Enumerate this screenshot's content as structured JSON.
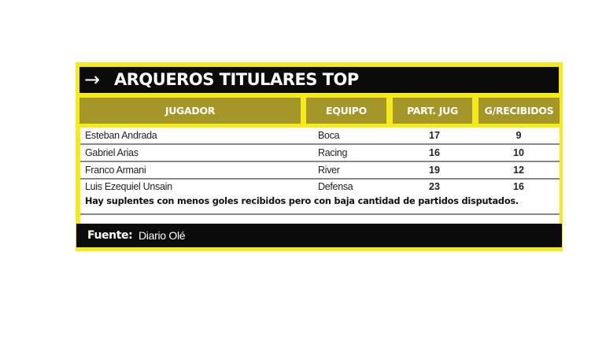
{
  "title": {
    "icon": "arrow-right-icon",
    "arrow": "→",
    "text": "ARQUEROS TITULARES TOP"
  },
  "headers": [
    "JUGADOR",
    "EQUIPO",
    "PART. JUG",
    "G/RECIBIDOS"
  ],
  "rows": [
    {
      "jugador": "Esteban Andrada",
      "equipo": "Boca",
      "partidos": "17",
      "goles": "9"
    },
    {
      "jugador": "Gabriel Arias",
      "equipo": "Racing",
      "partidos": "16",
      "goles": "10"
    },
    {
      "jugador": "Franco Armani",
      "equipo": "River",
      "partidos": "19",
      "goles": "12"
    },
    {
      "jugador": "Luis Ezequiel Unsain",
      "equipo": "Defensa",
      "partidos": "23",
      "goles": "16"
    }
  ],
  "note": "Hay suplentes con menos goles recibidos pero con baja cantidad de partidos disputados.",
  "footer": {
    "label": "Fuente:",
    "value": "Diario Olé"
  },
  "colors": {
    "border": "#f4ea1c",
    "header": "#a49629",
    "bar": "#0b0b0b"
  }
}
